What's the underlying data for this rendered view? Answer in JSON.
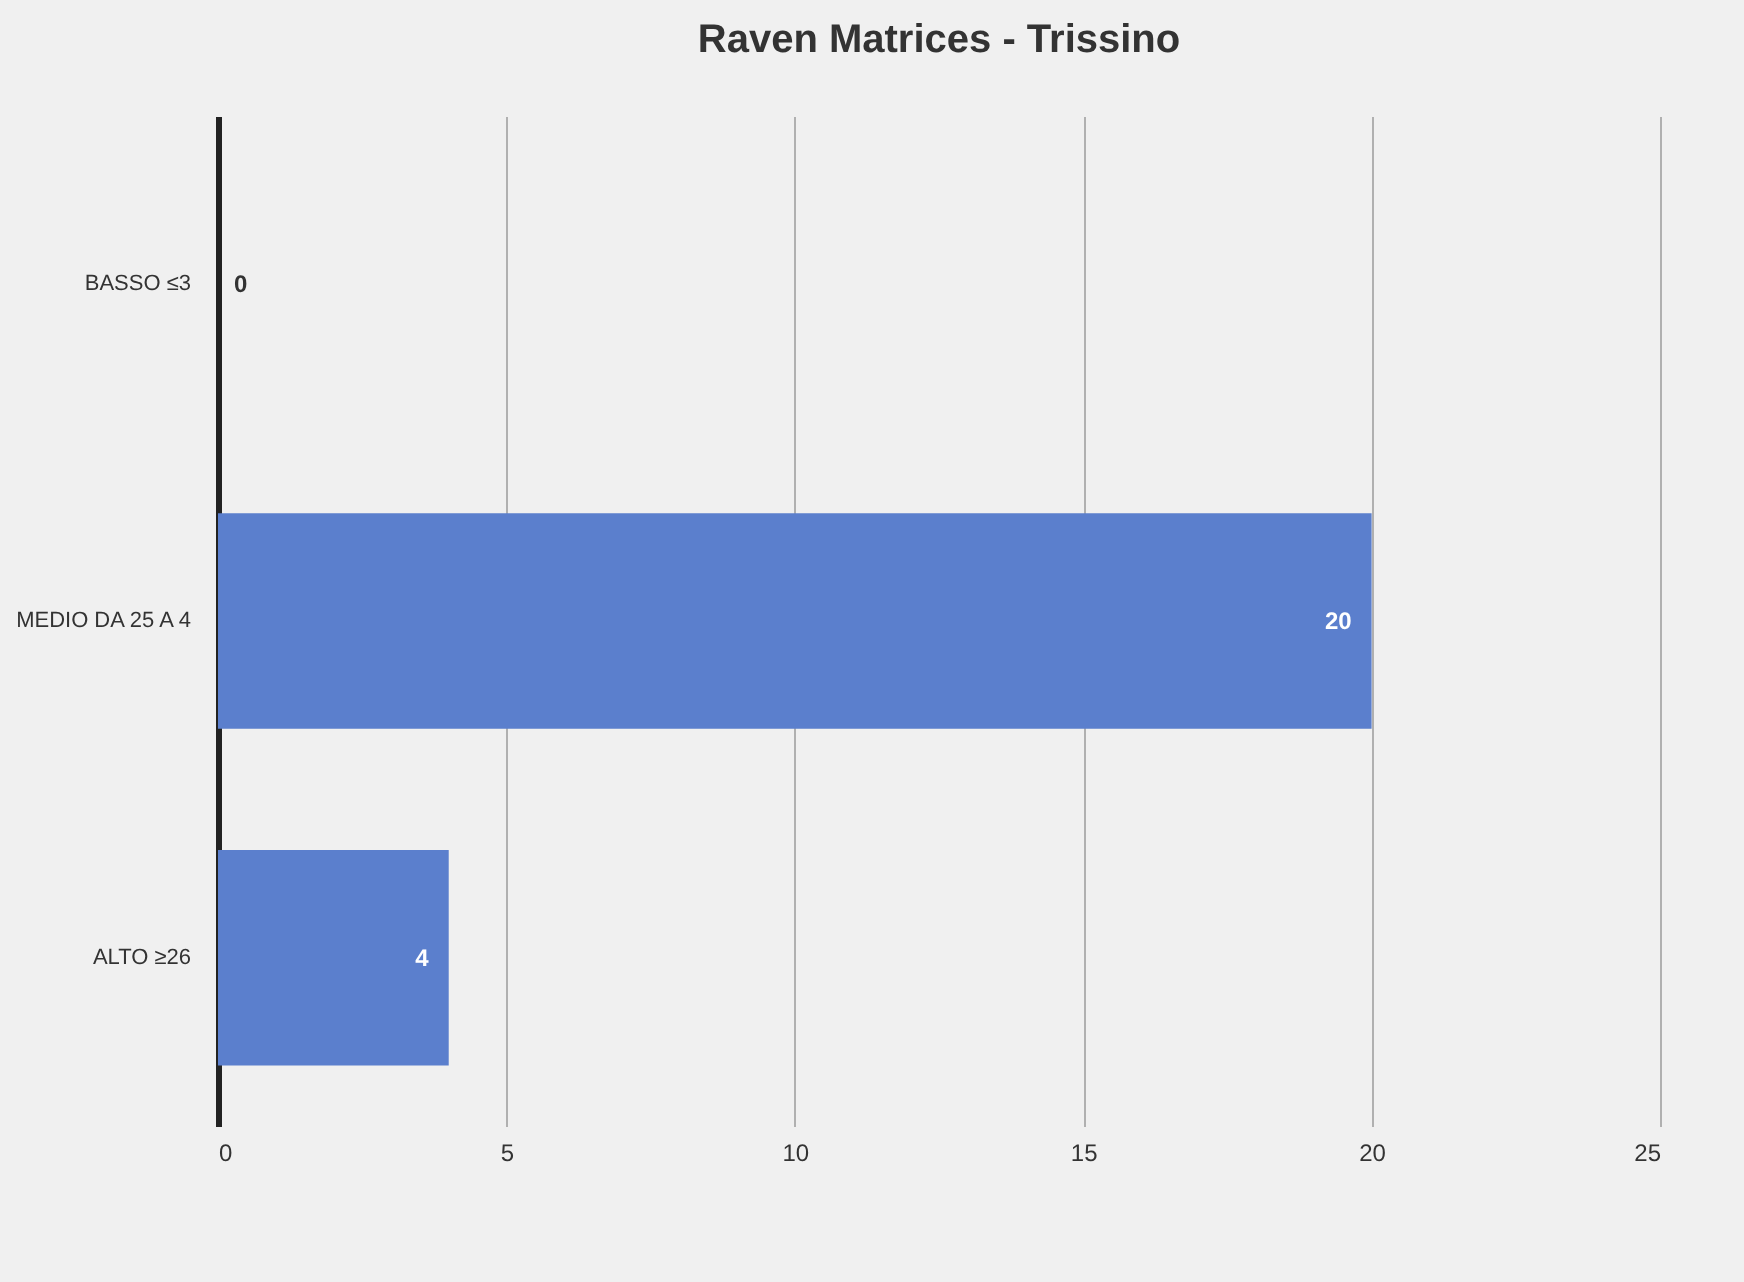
{
  "chart_data": {
    "type": "bar",
    "title": "Raven Matrices - Trissino",
    "orientation": "horizontal",
    "categories": [
      "BASSO ≤3",
      "MEDIO DA 25 A 4",
      "ALTO ≥26"
    ],
    "values": [
      0,
      20,
      4
    ],
    "color": "#5b7fcd",
    "xlim": [
      0,
      25
    ],
    "xticks": [
      0,
      5,
      10,
      15,
      20,
      25
    ],
    "grid": "x",
    "data_labels": true
  }
}
